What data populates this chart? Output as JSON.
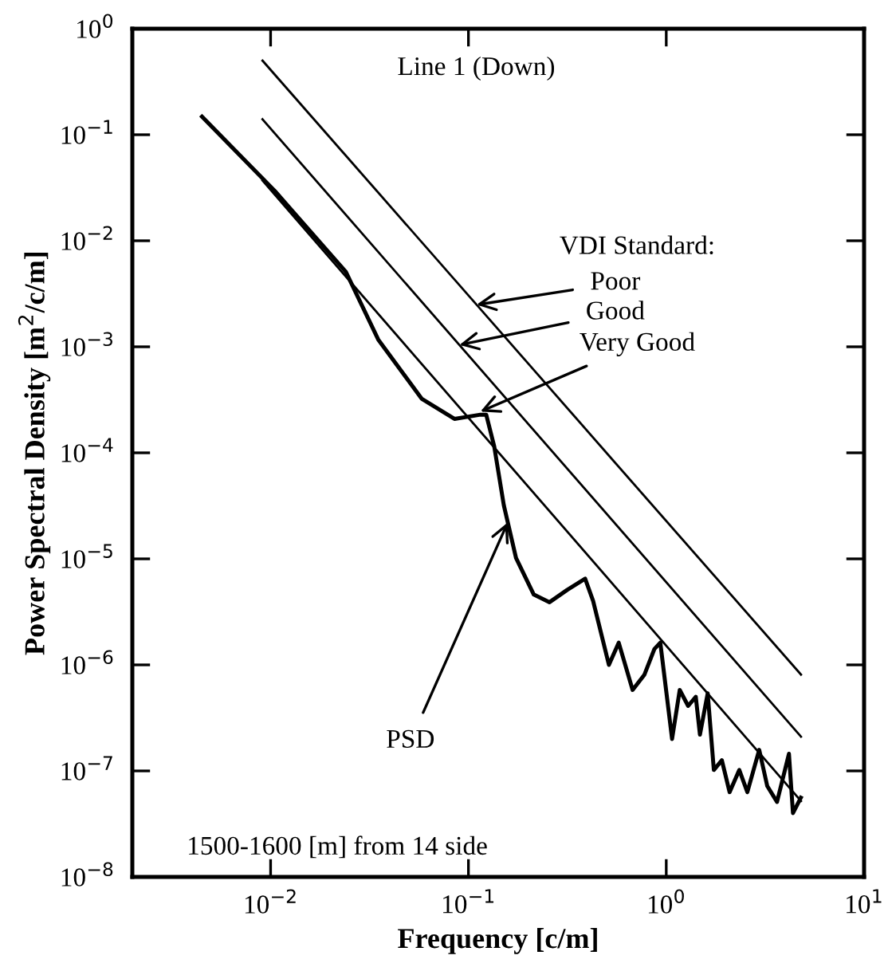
{
  "chart_data": {
    "type": "line",
    "xlabel": "Frequency [c/m]",
    "ylabel": "Power Spectral Density [m$^{2}$/c/m]",
    "log": "xy",
    "xlim": [
      0.002,
      10
    ],
    "ylim": [
      1e-08,
      1
    ],
    "xticks": [
      {
        "value": 0.01,
        "label": "10$^{−2}$"
      },
      {
        "value": 0.1,
        "label": "10$^{−1}$"
      },
      {
        "value": 1,
        "label": "10$^{0}$"
      },
      {
        "value": 10,
        "label": "10$^{1}$"
      }
    ],
    "yticks": [
      {
        "value": 1e-08,
        "label": "10$^{−8}$"
      },
      {
        "value": 1e-07,
        "label": "10$^{−7}$"
      },
      {
        "value": 1e-06,
        "label": "10$^{−6}$"
      },
      {
        "value": 1e-05,
        "label": "10$^{−5}$"
      },
      {
        "value": 0.0001,
        "label": "10$^{−4}$"
      },
      {
        "value": 0.001,
        "label": "10$^{−3}$"
      },
      {
        "value": 0.01,
        "label": "10$^{−2}$"
      },
      {
        "value": 0.1,
        "label": "10$^{−1}$"
      },
      {
        "value": 1,
        "label": "10$^{0}$"
      }
    ],
    "grid": false,
    "marker": "none",
    "line_style": "solid",
    "series": [
      {
        "color": "#000000",
        "x": [
          0.0091,
          4.8
        ],
        "values": [
          0.5,
          8.1e-07
        ]
      },
      {
        "color": "#000000",
        "x": [
          0.0091,
          4.8
        ],
        "values": [
          0.14,
          2.1e-07
        ]
      },
      {
        "color": "#000000",
        "x": [
          0.0091,
          4.8
        ],
        "values": [
          0.037,
          5.2e-08
        ]
      },
      {
        "color": "#000000",
        "x": [
          0.0045,
          0.0105,
          0.024,
          0.035,
          0.058,
          0.085,
          0.115,
          0.123,
          0.135,
          0.151,
          0.174,
          0.214,
          0.257,
          0.316,
          0.389,
          0.427,
          0.513,
          0.575,
          0.676,
          0.776,
          0.871,
          0.933,
          1.07,
          1.17,
          1.29,
          1.41,
          1.48,
          1.62,
          1.74,
          1.91,
          2.09,
          2.34,
          2.57,
          2.95,
          3.24,
          3.63,
          4.17,
          4.37,
          4.79
        ],
        "values": [
          0.148,
          0.0295,
          0.0051,
          0.00117,
          0.000324,
          0.000209,
          0.000229,
          0.000229,
          0.000115,
          3.2e-05,
          1.02e-05,
          4.6e-06,
          3.9e-06,
          5.1e-06,
          6.5e-06,
          4e-06,
          1e-06,
          1.62e-06,
          5.8e-07,
          8.1e-07,
          1.41e-06,
          1.62e-06,
          2e-07,
          5.8e-07,
          4.1e-07,
          5e-07,
          2.2e-07,
          5.4e-07,
          1.02e-07,
          1.26e-07,
          6.3e-08,
          1.02e-07,
          6.3e-08,
          1.58e-07,
          7.2e-08,
          5.1e-08,
          1.45e-07,
          4e-08,
          5.6e-08
        ]
      }
    ],
    "annotations": [
      "Line 1 (Down)",
      "VDI Standard:",
      {
        "text": "Poor",
        "x": 0.11,
        "y": 0.00249
      },
      {
        "text": "Good",
        "x": 0.09,
        "y": 0.00104
      },
      {
        "text": "Very Good",
        "x": 0.115,
        "y": 0.000245
      },
      {
        "text": "PSD",
        "x": 0.158,
        "y": 2.2e-05
      },
      "1500-1600 [m] from 14 side"
    ]
  }
}
